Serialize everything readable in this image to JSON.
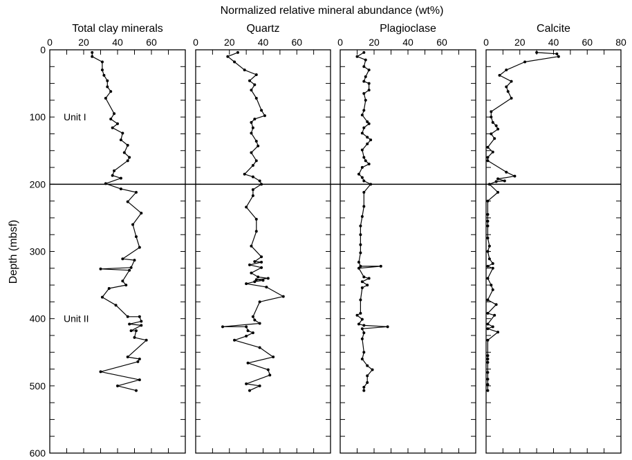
{
  "chart_data": {
    "type": "line",
    "title": "Normalized relative mineral abundance (wt%)",
    "ylabel": "Depth (mbsf)",
    "ylim": [
      0,
      600
    ],
    "y_inverted": true,
    "y_ticks": [
      0,
      100,
      200,
      300,
      400,
      500,
      600
    ],
    "grid": false,
    "unit_boundary_depth": 200,
    "unit_labels": [
      {
        "text": "Unit I",
        "depth": 100
      },
      {
        "text": "Unit II",
        "depth": 400
      }
    ],
    "panels": [
      {
        "name": "Total clay minerals",
        "xlim": [
          0,
          80
        ],
        "x_ticks": [
          0,
          20,
          40,
          60
        ],
        "points": [
          [
            25,
            4
          ],
          [
            25,
            10
          ],
          [
            31,
            18
          ],
          [
            31,
            30
          ],
          [
            32,
            38
          ],
          [
            34,
            46
          ],
          [
            34,
            55
          ],
          [
            36,
            62
          ],
          [
            33,
            72
          ],
          [
            38,
            95
          ],
          [
            36,
            103
          ],
          [
            40,
            110
          ],
          [
            37,
            116
          ],
          [
            43,
            124
          ],
          [
            42,
            134
          ],
          [
            46,
            142
          ],
          [
            44,
            153
          ],
          [
            47,
            160
          ],
          [
            46,
            165
          ],
          [
            38,
            180
          ],
          [
            37,
            187
          ],
          [
            42,
            191
          ],
          [
            33,
            199
          ],
          [
            42,
            207
          ],
          [
            51,
            212
          ],
          [
            46,
            226
          ],
          [
            54,
            243
          ],
          [
            49,
            260
          ],
          [
            51,
            278
          ],
          [
            53,
            294
          ],
          [
            43,
            311
          ],
          [
            50,
            313
          ],
          [
            48,
            324
          ],
          [
            30,
            326
          ],
          [
            47,
            328
          ],
          [
            43,
            344
          ],
          [
            45,
            350
          ],
          [
            35,
            355
          ],
          [
            31,
            368
          ],
          [
            39,
            380
          ],
          [
            46,
            397
          ],
          [
            53,
            397
          ],
          [
            54,
            404
          ],
          [
            47,
            408
          ],
          [
            54,
            410
          ],
          [
            48,
            418
          ],
          [
            51,
            418
          ],
          [
            50,
            428
          ],
          [
            57,
            432
          ],
          [
            46,
            457
          ],
          [
            53,
            460
          ],
          [
            52,
            464
          ],
          [
            30,
            479
          ],
          [
            53,
            491
          ],
          [
            40,
            500
          ],
          [
            51,
            507
          ]
        ]
      },
      {
        "name": "Quartz",
        "xlim": [
          0,
          80
        ],
        "x_ticks": [
          0,
          20,
          40,
          60
        ],
        "points": [
          [
            25,
            4
          ],
          [
            19,
            10
          ],
          [
            23,
            18
          ],
          [
            29,
            30
          ],
          [
            36,
            37
          ],
          [
            32,
            46
          ],
          [
            35,
            52
          ],
          [
            33,
            60
          ],
          [
            36,
            72
          ],
          [
            39,
            90
          ],
          [
            41,
            98
          ],
          [
            35,
            103
          ],
          [
            33,
            108
          ],
          [
            34,
            116
          ],
          [
            33,
            124
          ],
          [
            36,
            136
          ],
          [
            37,
            143
          ],
          [
            33,
            153
          ],
          [
            36,
            165
          ],
          [
            34,
            172
          ],
          [
            29,
            185
          ],
          [
            34,
            189
          ],
          [
            38,
            195
          ],
          [
            39,
            200
          ],
          [
            34,
            208
          ],
          [
            34,
            217
          ],
          [
            30,
            234
          ],
          [
            36,
            252
          ],
          [
            36,
            270
          ],
          [
            33,
            292
          ],
          [
            39,
            308
          ],
          [
            35,
            315
          ],
          [
            39,
            316
          ],
          [
            32,
            320
          ],
          [
            39,
            324
          ],
          [
            33,
            332
          ],
          [
            37,
            338
          ],
          [
            43,
            340
          ],
          [
            36,
            342
          ],
          [
            40,
            343
          ],
          [
            35,
            345
          ],
          [
            30,
            348
          ],
          [
            42,
            353
          ],
          [
            52,
            367
          ],
          [
            38,
            375
          ],
          [
            34,
            397
          ],
          [
            35,
            402
          ],
          [
            38,
            407
          ],
          [
            16,
            412
          ],
          [
            30,
            412
          ],
          [
            31,
            418
          ],
          [
            34,
            421
          ],
          [
            30,
            426
          ],
          [
            23,
            432
          ],
          [
            38,
            443
          ],
          [
            46,
            457
          ],
          [
            31,
            466
          ],
          [
            43,
            476
          ],
          [
            44,
            484
          ],
          [
            30,
            497
          ],
          [
            38,
            500
          ],
          [
            32,
            507
          ]
        ]
      },
      {
        "name": "Plagioclase",
        "xlim": [
          0,
          80
        ],
        "x_ticks": [
          0,
          20,
          40,
          60
        ],
        "points": [
          [
            14,
            4
          ],
          [
            10,
            10
          ],
          [
            15,
            15
          ],
          [
            14,
            25
          ],
          [
            17,
            30
          ],
          [
            15,
            40
          ],
          [
            14,
            47
          ],
          [
            17,
            50
          ],
          [
            17,
            60
          ],
          [
            14,
            65
          ],
          [
            15,
            75
          ],
          [
            14,
            90
          ],
          [
            13,
            97
          ],
          [
            16,
            107
          ],
          [
            17,
            110
          ],
          [
            14,
            116
          ],
          [
            13,
            124
          ],
          [
            16,
            130
          ],
          [
            18,
            134
          ],
          [
            16,
            140
          ],
          [
            13,
            149
          ],
          [
            14,
            160
          ],
          [
            15,
            165
          ],
          [
            17,
            170
          ],
          [
            13,
            175
          ],
          [
            11,
            185
          ],
          [
            13,
            190
          ],
          [
            14,
            195
          ],
          [
            18,
            200
          ],
          [
            14,
            212
          ],
          [
            14,
            233
          ],
          [
            13,
            248
          ],
          [
            12,
            262
          ],
          [
            12,
            275
          ],
          [
            12,
            290
          ],
          [
            12,
            302
          ],
          [
            11,
            316
          ],
          [
            12,
            322
          ],
          [
            24,
            322
          ],
          [
            11,
            325
          ],
          [
            14,
            338
          ],
          [
            17,
            340
          ],
          [
            13,
            345
          ],
          [
            16,
            350
          ],
          [
            13,
            354
          ],
          [
            12,
            372
          ],
          [
            12,
            392
          ],
          [
            10,
            395
          ],
          [
            13,
            401
          ],
          [
            11,
            408
          ],
          [
            14,
            410
          ],
          [
            28,
            412
          ],
          [
            13,
            415
          ],
          [
            14,
            421
          ],
          [
            13,
            430
          ],
          [
            14,
            450
          ],
          [
            13,
            460
          ],
          [
            16,
            470
          ],
          [
            19,
            476
          ],
          [
            16,
            485
          ],
          [
            16,
            495
          ],
          [
            14,
            502
          ],
          [
            14,
            507
          ]
        ]
      },
      {
        "name": "Calcite",
        "xlim": [
          0,
          80
        ],
        "x_ticks": [
          0,
          20,
          40,
          60,
          80
        ],
        "points": [
          [
            30,
            4
          ],
          [
            42,
            6
          ],
          [
            43,
            10
          ],
          [
            23,
            18
          ],
          [
            12,
            30
          ],
          [
            8,
            38
          ],
          [
            15,
            47
          ],
          [
            12,
            55
          ],
          [
            13,
            62
          ],
          [
            15,
            72
          ],
          [
            3,
            92
          ],
          [
            3,
            100
          ],
          [
            4,
            108
          ],
          [
            6,
            113
          ],
          [
            7,
            118
          ],
          [
            3,
            125
          ],
          [
            5,
            132
          ],
          [
            1,
            145
          ],
          [
            4,
            152
          ],
          [
            1,
            160
          ],
          [
            1,
            165
          ],
          [
            12,
            182
          ],
          [
            17,
            188
          ],
          [
            7,
            192
          ],
          [
            11,
            195
          ],
          [
            6,
            196
          ],
          [
            2,
            200
          ],
          [
            7,
            212
          ],
          [
            1,
            225
          ],
          [
            1,
            245
          ],
          [
            1,
            255
          ],
          [
            1,
            262
          ],
          [
            1,
            280
          ],
          [
            2,
            292
          ],
          [
            1,
            300
          ],
          [
            2,
            311
          ],
          [
            4,
            318
          ],
          [
            1,
            322
          ],
          [
            4,
            325
          ],
          [
            1,
            340
          ],
          [
            3,
            350
          ],
          [
            4,
            357
          ],
          [
            1,
            372
          ],
          [
            6,
            379
          ],
          [
            1,
            392
          ],
          [
            5,
            395
          ],
          [
            1,
            408
          ],
          [
            4,
            412
          ],
          [
            1,
            415
          ],
          [
            7,
            420
          ],
          [
            1,
            432
          ],
          [
            1,
            455
          ],
          [
            1,
            460
          ],
          [
            1,
            465
          ],
          [
            1,
            480
          ],
          [
            1,
            490
          ],
          [
            1,
            498
          ],
          [
            1,
            507
          ]
        ]
      }
    ]
  }
}
